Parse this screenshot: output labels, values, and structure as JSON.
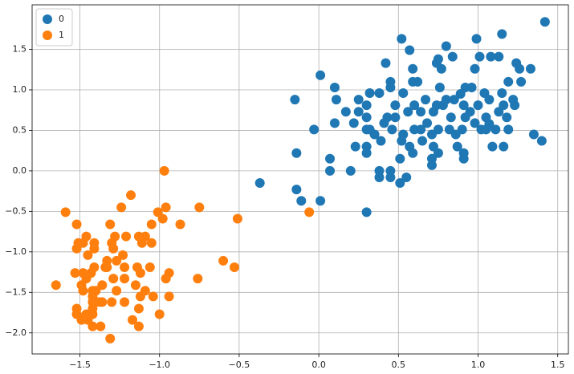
{
  "chart_data": {
    "type": "scatter",
    "xlim": [
      -1.8,
      1.567
    ],
    "ylim": [
      -2.26,
      2.05
    ],
    "xticks": [
      {
        "value": -1.5,
        "label": "−1.5"
      },
      {
        "value": -1.0,
        "label": "−1.0"
      },
      {
        "value": -0.5,
        "label": "−0.5"
      },
      {
        "value": 0.0,
        "label": "0.0"
      },
      {
        "value": 0.5,
        "label": "0.5"
      },
      {
        "value": 1.0,
        "label": "1.0"
      },
      {
        "value": 1.5,
        "label": "1.5"
      }
    ],
    "yticks": [
      {
        "value": -2.0,
        "label": "−2.0"
      },
      {
        "value": -1.5,
        "label": "−1.5"
      },
      {
        "value": -1.0,
        "label": "−1.0"
      },
      {
        "value": -0.5,
        "label": "−0.5"
      },
      {
        "value": 0.0,
        "label": "0.0"
      },
      {
        "value": 0.5,
        "label": "0.5"
      },
      {
        "value": 1.0,
        "label": "1.0"
      },
      {
        "value": 1.5,
        "label": "1.5"
      }
    ],
    "grid": true,
    "legend": "upper left",
    "series": [
      {
        "name": "0",
        "color": "#1f77b4",
        "x": [
          1.42,
          1.15,
          0.52,
          0.99,
          0.57,
          0.8,
          0.42,
          0.75,
          0.84,
          1.01,
          1.08,
          1.13,
          1.24,
          1.33,
          1.26,
          0.74,
          0.77,
          0.59,
          0.98,
          0.01,
          0.45,
          0.59,
          0.62,
          1.19,
          1.27,
          0.1,
          0.76,
          0.92,
          0.96,
          -0.15,
          0.11,
          0.32,
          0.38,
          0.45,
          0.53,
          0.8,
          0.85,
          0.89,
          1.04,
          1.07,
          1.15,
          1.22,
          0.25,
          0.17,
          0.25,
          0.3,
          0.48,
          0.6,
          0.67,
          0.74,
          0.78,
          0.91,
          1.0,
          1.16,
          1.23,
          0.1,
          0.22,
          0.3,
          0.43,
          0.48,
          0.56,
          0.64,
          0.72,
          0.83,
          0.92,
          1.05,
          1.18,
          -0.03,
          0.3,
          0.32,
          0.41,
          0.46,
          0.6,
          0.64,
          0.75,
          0.82,
          0.9,
          1.02,
          1.05,
          1.11,
          1.19,
          1.35,
          0.35,
          0.53,
          0.68,
          0.71,
          0.86,
          0.98,
          1.4,
          0.23,
          0.3,
          0.39,
          0.52,
          0.57,
          0.65,
          0.72,
          0.87,
          1.09,
          1.16,
          -0.14,
          0.3,
          0.59,
          0.75,
          0.91,
          0.07,
          0.51,
          0.71,
          0.91,
          0.07,
          0.2,
          0.38,
          0.45,
          0.71,
          0.38,
          0.45,
          0.55,
          0.51,
          -0.37,
          -0.14,
          -0.11,
          0.01,
          0.3,
          1.07,
          0.95,
          1.13
        ],
        "y": [
          1.84,
          1.69,
          1.63,
          1.63,
          1.49,
          1.54,
          1.33,
          1.38,
          1.41,
          1.41,
          1.41,
          1.41,
          1.33,
          1.26,
          1.26,
          1.33,
          1.26,
          1.26,
          1.26,
          1.18,
          1.1,
          1.1,
          1.1,
          1.1,
          1.1,
          1.03,
          1.03,
          1.03,
          1.03,
          0.88,
          0.88,
          0.96,
          0.96,
          1.03,
          0.96,
          0.88,
          0.88,
          0.95,
          0.96,
          0.88,
          0.96,
          0.88,
          0.88,
          0.73,
          0.73,
          0.81,
          0.81,
          0.81,
          0.88,
          0.81,
          0.81,
          0.81,
          0.81,
          0.81,
          0.81,
          0.59,
          0.59,
          0.66,
          0.66,
          0.66,
          0.73,
          0.73,
          0.73,
          0.66,
          0.66,
          0.66,
          0.66,
          0.51,
          0.51,
          0.51,
          0.59,
          0.51,
          0.51,
          0.51,
          0.51,
          0.51,
          0.51,
          0.51,
          0.51,
          0.51,
          0.51,
          0.45,
          0.45,
          0.45,
          0.59,
          0.45,
          0.45,
          0.59,
          0.37,
          0.3,
          0.3,
          0.37,
          0.37,
          0.3,
          0.37,
          0.3,
          0.3,
          0.3,
          0.3,
          0.22,
          0.22,
          0.22,
          0.22,
          0.22,
          0.15,
          0.15,
          0.15,
          0.15,
          0.0,
          0.0,
          0.0,
          0.0,
          0.07,
          -0.08,
          -0.08,
          -0.08,
          -0.15,
          -0.15,
          -0.23,
          -0.37,
          -0.37,
          -0.51,
          0.58,
          0.73,
          0.73
        ]
      },
      {
        "name": "1",
        "color": "#ff7f0e",
        "x": [
          -0.97,
          -1.18,
          -1.24,
          -0.96,
          -0.75,
          -1.59,
          -1.01,
          -0.06,
          -1.52,
          -1.31,
          -1.05,
          -0.87,
          -0.51,
          -0.98,
          -1.46,
          -1.28,
          -1.21,
          -1.13,
          -1.09,
          -1.51,
          -1.48,
          -1.41,
          -1.3,
          -1.11,
          -1.05,
          -1.52,
          -1.41,
          -1.29,
          -1.45,
          -1.23,
          -1.33,
          -1.27,
          -0.6,
          -1.41,
          -1.33,
          -1.22,
          -1.14,
          -1.06,
          -0.53,
          -1.53,
          -1.48,
          -1.43,
          -1.12,
          -0.94,
          -1.46,
          -1.29,
          -1.22,
          -0.96,
          -0.76,
          -1.65,
          -1.49,
          -1.36,
          -1.15,
          -1.48,
          -1.42,
          -1.4,
          -1.27,
          -1.09,
          -1.42,
          -1.12,
          -1.04,
          -0.94,
          -1.42,
          -1.38,
          -1.36,
          -1.3,
          -1.22,
          -1.52,
          -1.42,
          -1.13,
          -1.52,
          -1.46,
          -1.0,
          -1.42,
          -1.49,
          -1.45,
          -1.17,
          -1.42,
          -1.37,
          -1.13,
          -1.31,
          -1.34
        ],
        "y": [
          0.0,
          -0.3,
          -0.45,
          -0.45,
          -0.45,
          -0.51,
          -0.51,
          -0.51,
          -0.66,
          -0.66,
          -0.66,
          -0.66,
          -0.59,
          -0.59,
          -0.81,
          -0.81,
          -0.81,
          -0.81,
          -0.81,
          -0.89,
          -0.89,
          -0.89,
          -0.89,
          -0.89,
          -0.89,
          -0.96,
          -0.96,
          -0.96,
          -1.04,
          -1.04,
          -1.11,
          -1.11,
          -1.11,
          -1.19,
          -1.19,
          -1.19,
          -1.19,
          -1.19,
          -1.19,
          -1.26,
          -1.26,
          -1.26,
          -1.26,
          -1.26,
          -1.33,
          -1.33,
          -1.33,
          -1.33,
          -1.33,
          -1.41,
          -1.41,
          -1.41,
          -1.41,
          -1.48,
          -1.48,
          -1.48,
          -1.48,
          -1.48,
          -1.55,
          -1.55,
          -1.55,
          -1.55,
          -1.62,
          -1.62,
          -1.62,
          -1.62,
          -1.62,
          -1.7,
          -1.7,
          -1.7,
          -1.77,
          -1.77,
          -1.77,
          -1.77,
          -1.84,
          -1.84,
          -1.84,
          -1.92,
          -1.92,
          -1.92,
          -2.07,
          -1.19
        ]
      }
    ]
  }
}
